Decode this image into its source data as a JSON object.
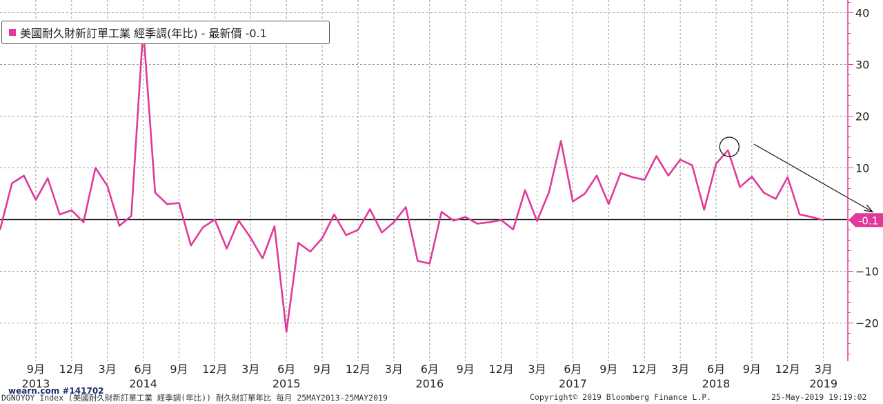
{
  "legend": {
    "label": "美國耐久財新訂單工業 經季調(年比) - 最新價 -0.1",
    "color": "#e0399a"
  },
  "footer": {
    "left": "DGNOYOY Index (美國耐久財新訂單工業 經季調(年比)) 耐久財訂單年比  每月 25MAY2013-25MAY2019",
    "copyright": "Copyright© 2019 Bloomberg Finance L.P.",
    "timestamp": "25-May-2019 19:19:02"
  },
  "watermark": "wearn.com #141702",
  "chart_data": {
    "type": "line",
    "title": "",
    "xlabel": "",
    "ylabel": "",
    "ylim": [
      -27,
      42
    ],
    "yticks": [
      40,
      30,
      20,
      10,
      -10,
      -20
    ],
    "grid": true,
    "legend_position": "top-left",
    "x_labels": [
      {
        "month": "9月",
        "year": "2013"
      },
      {
        "month": "12月",
        "year": ""
      },
      {
        "month": "3月",
        "year": ""
      },
      {
        "month": "6月",
        "year": "2014"
      },
      {
        "month": "9月",
        "year": ""
      },
      {
        "month": "12月",
        "year": ""
      },
      {
        "month": "3月",
        "year": ""
      },
      {
        "month": "6月",
        "year": "2015"
      },
      {
        "month": "9月",
        "year": ""
      },
      {
        "month": "12月",
        "year": ""
      },
      {
        "month": "3月",
        "year": ""
      },
      {
        "month": "6月",
        "year": "2016"
      },
      {
        "month": "9月",
        "year": ""
      },
      {
        "month": "12月",
        "year": ""
      },
      {
        "month": "3月",
        "year": ""
      },
      {
        "month": "6月",
        "year": "2017"
      },
      {
        "month": "9月",
        "year": ""
      },
      {
        "month": "12月",
        "year": ""
      },
      {
        "month": "3月",
        "year": ""
      },
      {
        "month": "6月",
        "year": "2018"
      },
      {
        "month": "9月",
        "year": ""
      },
      {
        "month": "12月",
        "year": ""
      },
      {
        "month": "3月",
        "year": "2019"
      }
    ],
    "series": [
      {
        "name": "美國耐久財新訂單工業 經季調(年比)",
        "color": "#e0399a",
        "start": "2013-06",
        "values": [
          -2,
          7,
          8.5,
          3.8,
          8,
          1,
          1.8,
          -0.5,
          10,
          6.5,
          -1.2,
          0.7,
          37,
          5.2,
          3,
          3.2,
          -5,
          -1.5,
          0,
          -5.6,
          -0.2,
          -3.5,
          -7.5,
          -1.3,
          -21.7,
          -4.5,
          -6.2,
          -3.6,
          1,
          -3,
          -2,
          2,
          -2.5,
          -0.5,
          2.4,
          -8,
          -8.5,
          1.5,
          -0.2,
          0.5,
          -0.8,
          -0.5,
          -0.1,
          -1.9,
          5.7,
          -0.3,
          5.3,
          15.2,
          3.5,
          5,
          8.5,
          3,
          9,
          8.2,
          7.7,
          12.3,
          8.5,
          11.6,
          10.5,
          1.9,
          10.8,
          13.4,
          6.3,
          8.3,
          5.2,
          4,
          8.2,
          1,
          0.5,
          -0.1
        ]
      }
    ],
    "last_value_label": "-0.1",
    "annotations": {
      "circle": {
        "index": 61,
        "value": 13.4
      },
      "arrow": {
        "from_index": 63,
        "from_value": 14.6,
        "to_index": 73,
        "to_value": 1.5
      }
    }
  }
}
